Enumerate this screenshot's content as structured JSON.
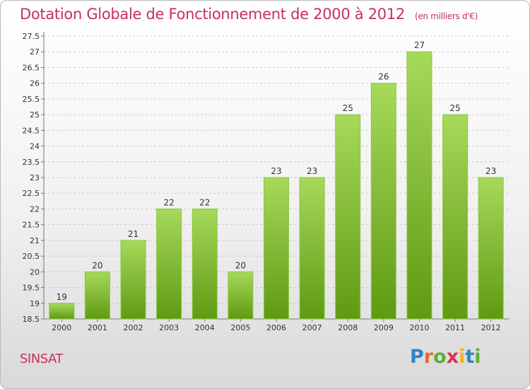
{
  "title": "Dotation Globale de Fonctionnement de 2000 à 2012",
  "unit": "(en milliers d'€)",
  "commune": "SINSAT",
  "logo": {
    "letters": [
      "P",
      "r",
      "o",
      "x",
      "i",
      "t",
      "i"
    ],
    "colors": [
      "#2e86c8",
      "#e8692a",
      "#5fae37",
      "#d6364b",
      "#f1b521",
      "#2e86c8",
      "#5fae37"
    ]
  },
  "colors": {
    "bar_light": "#a7d95b",
    "bar_dark": "#5f9a12",
    "grid": "#c9c9c9"
  },
  "chart_data": {
    "type": "bar",
    "title": "Dotation Globale de Fonctionnement de 2000 à 2012",
    "categories": [
      "2000",
      "2001",
      "2002",
      "2003",
      "2004",
      "2005",
      "2006",
      "2007",
      "2008",
      "2009",
      "2010",
      "2011",
      "2012"
    ],
    "values": [
      19,
      20,
      21,
      22,
      22,
      20,
      23,
      23,
      25,
      26,
      27,
      25,
      23
    ],
    "ylim": [
      18.5,
      27.5
    ],
    "yticks": [
      "18.5",
      "19",
      "19.5",
      "20",
      "20.5",
      "21",
      "21.5",
      "22",
      "22.5",
      "23",
      "23.5",
      "24",
      "24.5",
      "25",
      "25.5",
      "26",
      "26.5",
      "27",
      "27.5"
    ],
    "grid": true,
    "legend": "none"
  }
}
